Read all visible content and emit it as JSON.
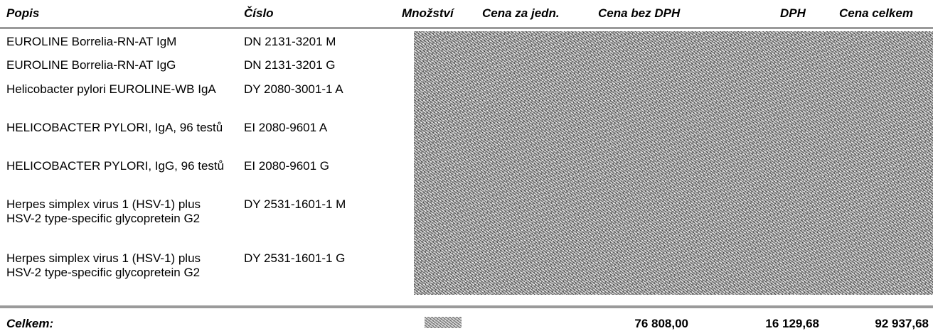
{
  "headers": {
    "popis": "Popis",
    "cislo": "Číslo",
    "mnozstvi": "Množství",
    "cena_za_jedn": "Cena za jedn.",
    "cena_bez_dph": "Cena bez DPH",
    "dph": "DPH",
    "cena_celkem": "Cena celkem"
  },
  "rows": [
    {
      "popis": "EUROLINE Borrelia-RN-AT IgM",
      "cislo": "DN 2131-3201 M"
    },
    {
      "popis": "EUROLINE Borrelia-RN-AT IgG",
      "cislo": "DN 2131-3201 G"
    },
    {
      "popis": "Helicobacter pylori EUROLINE-WB IgA",
      "cislo": "DY 2080-3001-1 A"
    },
    {
      "popis": "HELICOBACTER PYLORI, IgA, 96 testů",
      "cislo": "EI 2080-9601 A"
    },
    {
      "popis": "HELICOBACTER PYLORI, IgG, 96 testů",
      "cislo": "EI 2080-9601 G"
    },
    {
      "popis": "Herpes simplex virus 1 (HSV-1) plus HSV-2 type-specific glycopretein G2",
      "cislo": "DY 2531-1601-1 M"
    },
    {
      "popis": "Herpes simplex virus 1 (HSV-1) plus HSV-2 type-specific glycopretein G2",
      "cislo": "DY 2531-1601-1 G"
    }
  ],
  "footer": {
    "label": "Celkem:",
    "cena_bez_dph": "76 808,00",
    "dph": "16 129,68",
    "cena_celkem": "92 937,68"
  }
}
